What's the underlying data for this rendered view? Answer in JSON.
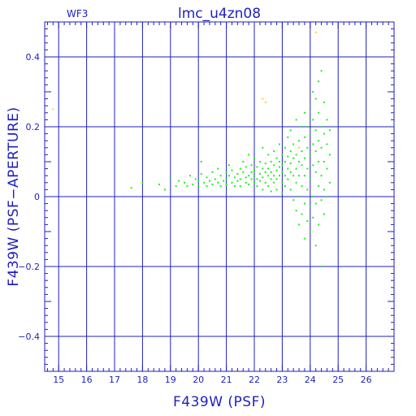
{
  "chart_data": {
    "type": "scatter",
    "title": "lmc_u4zn08",
    "subtitle": "WF3",
    "xlabel": "F439W (PSF)",
    "ylabel": "F439W (PSF−APERTURE)",
    "xlim": [
      14.5,
      27.0
    ],
    "ylim": [
      -0.5,
      0.5
    ],
    "xticks": [
      15,
      16,
      17,
      18,
      19,
      20,
      21,
      22,
      23,
      24,
      25,
      26
    ],
    "yticks": [
      -0.4,
      -0.2,
      0,
      0.2,
      0.4
    ],
    "ytick_labels": [
      "−0.4",
      "−0.2",
      "0",
      "0.2",
      "0.4"
    ],
    "grid": true,
    "colors": {
      "axes": "#1f1fbf",
      "grid": "#1f1fbf",
      "points": "#22ee22",
      "outliers": "#ffd21e"
    },
    "series": [
      {
        "color": "#22ee22",
        "points": [
          [
            17.6,
            0.025
          ],
          [
            18.0,
            0.04
          ],
          [
            18.6,
            0.035
          ],
          [
            18.8,
            0.02
          ],
          [
            19.0,
            0.05
          ],
          [
            19.2,
            0.03
          ],
          [
            19.3,
            0.045
          ],
          [
            19.5,
            0.04
          ],
          [
            19.6,
            0.03
          ],
          [
            19.7,
            0.06
          ],
          [
            19.8,
            0.035
          ],
          [
            19.9,
            0.05
          ],
          [
            20.0,
            0.045
          ],
          [
            20.0,
            0.03
          ],
          [
            20.1,
            0.065
          ],
          [
            20.1,
            0.1
          ],
          [
            20.2,
            0.04
          ],
          [
            20.3,
            0.055
          ],
          [
            20.3,
            0.03
          ],
          [
            20.4,
            0.045
          ],
          [
            20.5,
            0.07
          ],
          [
            20.5,
            0.035
          ],
          [
            20.6,
            0.05
          ],
          [
            20.7,
            0.04
          ],
          [
            20.7,
            0.08
          ],
          [
            20.8,
            0.06
          ],
          [
            20.8,
            0.03
          ],
          [
            20.9,
            0.045
          ],
          [
            21.0,
            0.07
          ],
          [
            21.0,
            0.05
          ],
          [
            21.0,
            0.035
          ],
          [
            21.1,
            0.06
          ],
          [
            21.1,
            0.09
          ],
          [
            21.2,
            0.04
          ],
          [
            21.2,
            0.075
          ],
          [
            21.3,
            0.055
          ],
          [
            21.3,
            0.03
          ],
          [
            21.4,
            0.065
          ],
          [
            21.4,
            0.045
          ],
          [
            21.5,
            0.08
          ],
          [
            21.5,
            0.05
          ],
          [
            21.5,
            0.03
          ],
          [
            21.6,
            0.07
          ],
          [
            21.6,
            0.1
          ],
          [
            21.7,
            0.055
          ],
          [
            21.7,
            0.04
          ],
          [
            21.7,
            0.085
          ],
          [
            21.8,
            0.06
          ],
          [
            21.8,
            0.035
          ],
          [
            21.8,
            0.12
          ],
          [
            21.9,
            0.07
          ],
          [
            21.9,
            0.05
          ],
          [
            21.9,
            0.09
          ],
          [
            22.0,
            0.06
          ],
          [
            22.0,
            0.04
          ],
          [
            22.0,
            0.075
          ],
          [
            22.0,
            0.11
          ],
          [
            22.1,
            0.05
          ],
          [
            22.1,
            0.085
          ],
          [
            22.1,
            0.03
          ],
          [
            22.2,
            0.065
          ],
          [
            22.2,
            0.1
          ],
          [
            22.2,
            0.045
          ],
          [
            22.3,
            0.08
          ],
          [
            22.3,
            0.055
          ],
          [
            22.3,
            0.14
          ],
          [
            22.3,
            0.02
          ],
          [
            22.4,
            0.07
          ],
          [
            22.4,
            0.095
          ],
          [
            22.4,
            0.04
          ],
          [
            22.5,
            0.06
          ],
          [
            22.5,
            0.12
          ],
          [
            22.5,
            0.08
          ],
          [
            22.5,
            0.03
          ],
          [
            22.6,
            0.05
          ],
          [
            22.6,
            0.1
          ],
          [
            22.6,
            0.07
          ],
          [
            22.6,
            0.015
          ],
          [
            22.7,
            0.09
          ],
          [
            22.7,
            0.06
          ],
          [
            22.7,
            0.13
          ],
          [
            22.7,
            0.04
          ],
          [
            22.8,
            0.075
          ],
          [
            22.8,
            0.11
          ],
          [
            22.8,
            0.05
          ],
          [
            22.8,
            0.02
          ],
          [
            22.9,
            0.085
          ],
          [
            22.9,
            0.06
          ],
          [
            22.9,
            0.15
          ],
          [
            22.9,
            0.1
          ],
          [
            23.0,
            0.07
          ],
          [
            23.0,
            0.04
          ],
          [
            23.0,
            0.12
          ],
          [
            23.0,
            0.09
          ],
          [
            23.0,
            0.01
          ],
          [
            23.1,
            0.06
          ],
          [
            23.1,
            0.14
          ],
          [
            23.1,
            0.1
          ],
          [
            23.1,
            0.03
          ],
          [
            23.2,
            0.08
          ],
          [
            23.2,
            0.17
          ],
          [
            23.2,
            0.05
          ],
          [
            23.2,
            0.115
          ],
          [
            23.3,
            0.07
          ],
          [
            23.3,
            0.13
          ],
          [
            23.3,
            0.02
          ],
          [
            23.3,
            0.095
          ],
          [
            23.3,
            0.19
          ],
          [
            23.4,
            0.06
          ],
          [
            23.4,
            0.11
          ],
          [
            23.4,
            0.15
          ],
          [
            23.4,
            -0.01
          ],
          [
            23.5,
            0.08
          ],
          [
            23.5,
            0.12
          ],
          [
            23.5,
            0.04
          ],
          [
            23.5,
            0.22
          ],
          [
            23.5,
            -0.04
          ],
          [
            23.6,
            0.1
          ],
          [
            23.6,
            0.16
          ],
          [
            23.6,
            0.06
          ],
          [
            23.6,
            0.0
          ],
          [
            23.6,
            -0.08
          ],
          [
            23.7,
            0.13
          ],
          [
            23.7,
            0.09
          ],
          [
            23.7,
            0.2
          ],
          [
            23.7,
            0.03
          ],
          [
            23.7,
            -0.05
          ],
          [
            23.8,
            0.11
          ],
          [
            23.8,
            0.17
          ],
          [
            23.8,
            0.06
          ],
          [
            23.8,
            0.24
          ],
          [
            23.8,
            -0.02
          ],
          [
            23.8,
            -0.12
          ],
          [
            23.9,
            0.14
          ],
          [
            23.9,
            0.08
          ],
          [
            23.9,
            0.2
          ],
          [
            23.9,
            0.02
          ],
          [
            23.9,
            -0.07
          ],
          [
            24.0,
            0.12
          ],
          [
            24.0,
            0.18
          ],
          [
            24.0,
            0.05
          ],
          [
            24.0,
            0.26
          ],
          [
            24.0,
            -0.03
          ],
          [
            24.0,
            -0.1
          ],
          [
            24.1,
            0.15
          ],
          [
            24.1,
            0.09
          ],
          [
            24.1,
            0.22
          ],
          [
            24.1,
            0.0
          ],
          [
            24.1,
            0.3
          ],
          [
            24.1,
            -0.06
          ],
          [
            24.2,
            0.13
          ],
          [
            24.2,
            0.19
          ],
          [
            24.2,
            0.07
          ],
          [
            24.2,
            0.28
          ],
          [
            24.2,
            -0.02
          ],
          [
            24.2,
            -0.14
          ],
          [
            24.3,
            0.16
          ],
          [
            24.3,
            0.1
          ],
          [
            24.3,
            0.24
          ],
          [
            24.3,
            0.33
          ],
          [
            24.3,
            0.03
          ],
          [
            24.3,
            -0.08
          ],
          [
            24.4,
            0.14
          ],
          [
            24.4,
            0.2
          ],
          [
            24.4,
            0.06
          ],
          [
            24.4,
            0.36
          ],
          [
            24.4,
            -0.01
          ],
          [
            24.4,
            -0.2
          ],
          [
            24.5,
            0.18
          ],
          [
            24.5,
            0.1
          ],
          [
            24.5,
            0.27
          ],
          [
            24.5,
            0.02
          ],
          [
            24.5,
            -0.05
          ],
          [
            24.6,
            0.15
          ],
          [
            24.6,
            0.22
          ],
          [
            24.6,
            0.08
          ],
          [
            24.6,
            0.0
          ],
          [
            24.7,
            0.12
          ],
          [
            24.7,
            0.04
          ],
          [
            24.7,
            0.19
          ]
        ]
      },
      {
        "color": "#ffd21e",
        "points": [
          [
            14.8,
            0.25
          ],
          [
            22.3,
            0.28
          ],
          [
            22.4,
            0.27
          ],
          [
            23.6,
            0.14
          ],
          [
            24.2,
            0.47
          ]
        ]
      }
    ]
  }
}
